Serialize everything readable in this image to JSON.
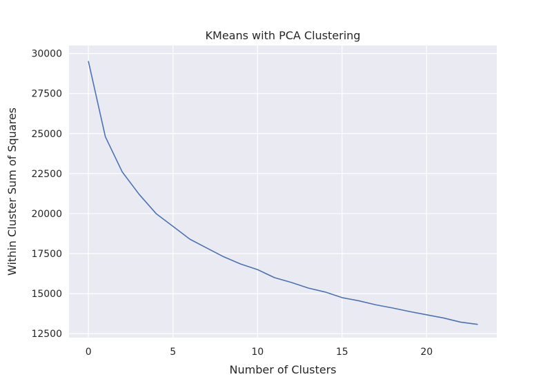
{
  "chart_data": {
    "type": "line",
    "title": "KMeans with PCA Clustering",
    "xlabel": "Number of Clusters",
    "ylabel": "Within Cluster Sum of Squares",
    "xlim": [
      -1.15,
      24.15
    ],
    "ylim": [
      12250,
      30500
    ],
    "xticks": [
      0,
      5,
      10,
      15,
      20
    ],
    "yticks": [
      12500,
      15000,
      17500,
      20000,
      22500,
      25000,
      27500,
      30000
    ],
    "grid": true,
    "legend": "none",
    "series": [
      {
        "color": "#4c72b0",
        "x": [
          0,
          1,
          2,
          3,
          4,
          5,
          6,
          7,
          8,
          9,
          10,
          11,
          12,
          13,
          14,
          15,
          16,
          17,
          18,
          19,
          20,
          21,
          22,
          23
        ],
        "y": [
          29500,
          24800,
          22600,
          21200,
          20000,
          19200,
          18400,
          17850,
          17300,
          16850,
          16500,
          16000,
          15700,
          15350,
          15100,
          14750,
          14550,
          14300,
          14100,
          13880,
          13680,
          13480,
          13220,
          13080
        ]
      }
    ]
  }
}
